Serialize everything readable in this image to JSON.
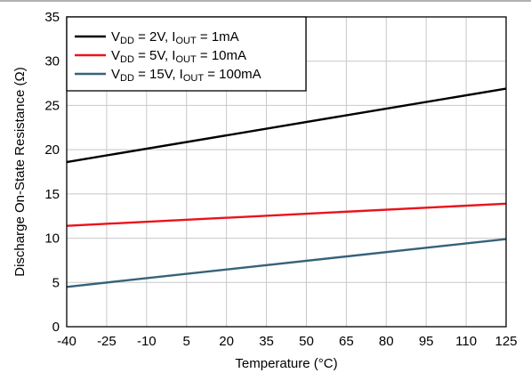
{
  "chart_data": {
    "type": "line",
    "title": "",
    "xlabel": "Temperature (°C)",
    "ylabel": "Discharge On-State Resistance (Ω)",
    "xlim": [
      -40,
      125
    ],
    "ylim": [
      0,
      35
    ],
    "x_ticks": [
      "-40",
      "-25",
      "-10",
      "5",
      "20",
      "35",
      "50",
      "65",
      "80",
      "95",
      "110",
      "125"
    ],
    "y_ticks": [
      "0",
      "5",
      "10",
      "15",
      "20",
      "25",
      "30",
      "35"
    ],
    "grid": true,
    "legend_position": "top-left",
    "series": [
      {
        "legend": [
          {
            "t": "V",
            "sub": false
          },
          {
            "t": "DD",
            "sub": true
          },
          {
            "t": " = 2V, I",
            "sub": false
          },
          {
            "t": "OUT",
            "sub": true
          },
          {
            "t": " = 1mA",
            "sub": false
          }
        ],
        "color": "#000000",
        "x": [
          -40,
          125
        ],
        "y": [
          18.6,
          26.9
        ]
      },
      {
        "legend": [
          {
            "t": "V",
            "sub": false
          },
          {
            "t": "DD",
            "sub": true
          },
          {
            "t": " = 5V, I",
            "sub": false
          },
          {
            "t": "OUT",
            "sub": true
          },
          {
            "t": " = 10mA",
            "sub": false
          }
        ],
        "color": "#e8141b",
        "x": [
          -40,
          125
        ],
        "y": [
          11.4,
          13.9
        ]
      },
      {
        "legend": [
          {
            "t": "V",
            "sub": false
          },
          {
            "t": "DD",
            "sub": true
          },
          {
            "t": " = 15V, I",
            "sub": false
          },
          {
            "t": "OUT",
            "sub": true
          },
          {
            "t": " = 100mA",
            "sub": false
          }
        ],
        "color": "#36627a",
        "x": [
          -40,
          125
        ],
        "y": [
          4.5,
          9.9
        ]
      }
    ]
  }
}
